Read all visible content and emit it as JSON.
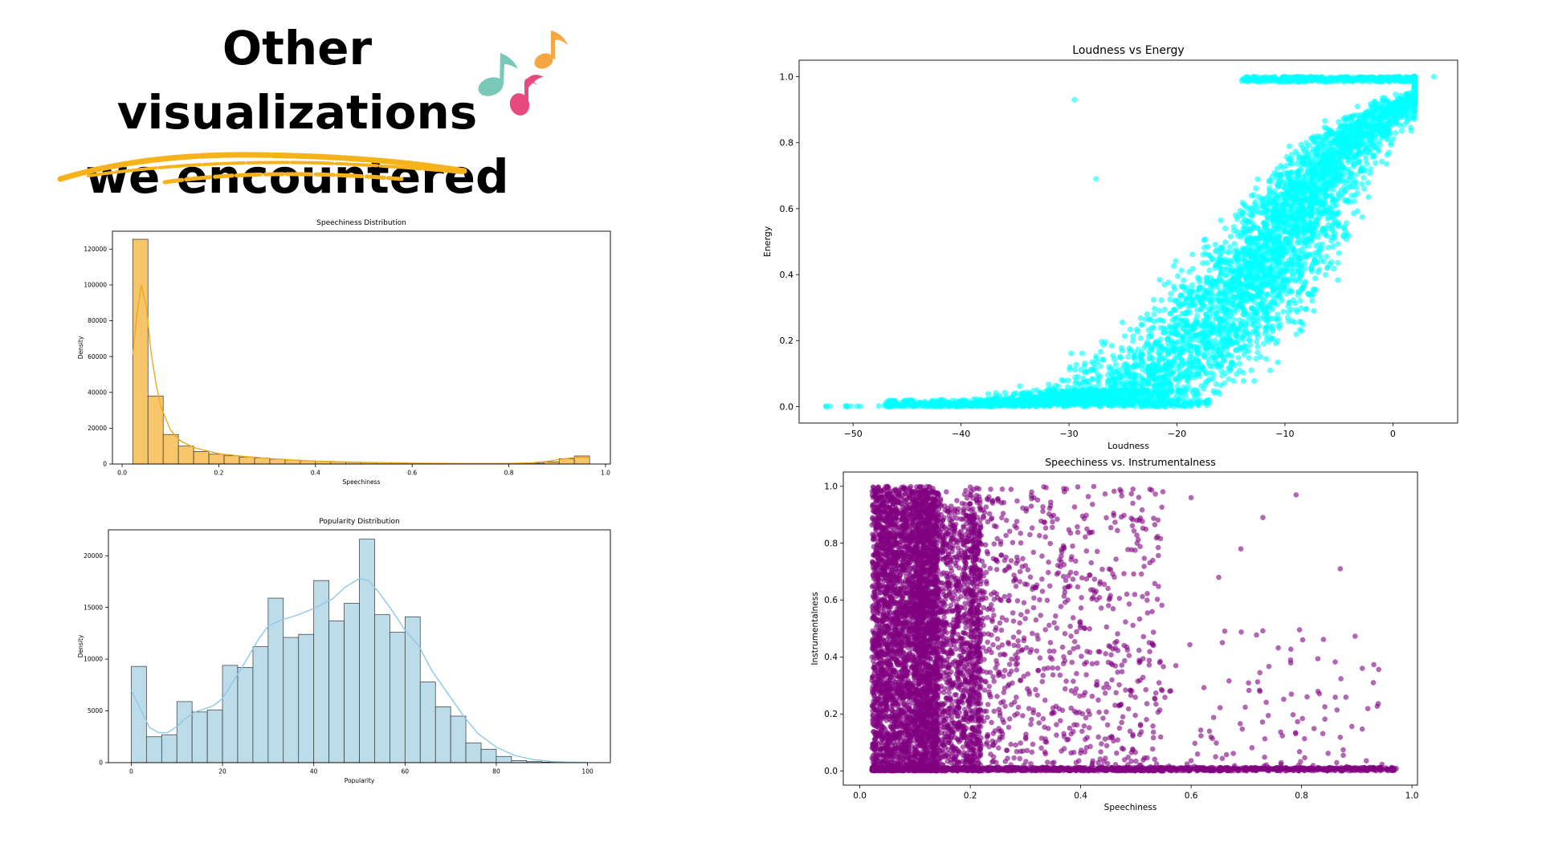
{
  "slide": {
    "title_line1": "Other visualizations",
    "title_line2": "we encountered",
    "colors": {
      "note_orange": "#f4a742",
      "note_teal": "#79c9b8",
      "note_pink": "#e8497f",
      "brush": "#f6b21b"
    }
  },
  "chart_data": [
    {
      "type": "bar",
      "subtype": "histogram with kde",
      "title": "Speechiness Distribution",
      "xlabel": "Speechiness",
      "ylabel": "Density",
      "xlim": [
        -0.02,
        1.01
      ],
      "ylim": [
        0,
        130000
      ],
      "xticks": [
        0.0,
        0.2,
        0.4,
        0.6,
        0.8,
        1.0
      ],
      "xtick_labels": [
        "0.0",
        "0.2",
        "0.4",
        "0.6",
        "0.8",
        "1.0"
      ],
      "yticks": [
        0,
        20000,
        40000,
        60000,
        80000,
        100000,
        120000
      ],
      "ytick_labels": [
        "0",
        "20000",
        "40000",
        "60000",
        "80000",
        "100000",
        "120000"
      ],
      "bin_edges": [
        0.022,
        0.0535,
        0.085,
        0.1165,
        0.148,
        0.1795,
        0.211,
        0.2425,
        0.274,
        0.3055,
        0.337,
        0.3685,
        0.4,
        0.4315,
        0.463,
        0.4945,
        0.526,
        0.5575,
        0.589,
        0.6205,
        0.652,
        0.6835,
        0.715,
        0.7465,
        0.778,
        0.8095,
        0.841,
        0.8725,
        0.904,
        0.9355,
        0.967
      ],
      "values": [
        125500,
        38000,
        16500,
        10000,
        7000,
        5500,
        4600,
        3900,
        3300,
        2700,
        2200,
        1800,
        1500,
        1200,
        1000,
        800,
        700,
        600,
        500,
        400,
        350,
        300,
        300,
        300,
        300,
        350,
        500,
        1200,
        3000,
        4500
      ],
      "kde_x": [
        0.022,
        0.03,
        0.04,
        0.05,
        0.06,
        0.07,
        0.08,
        0.1,
        0.12,
        0.15,
        0.2,
        0.25,
        0.3,
        0.35,
        0.4,
        0.5,
        0.6,
        0.7,
        0.8,
        0.85,
        0.88,
        0.91,
        0.94,
        0.967
      ],
      "kde_y": [
        61000,
        82000,
        100000,
        88000,
        62000,
        45000,
        32000,
        19000,
        13000,
        9000,
        5800,
        4300,
        3200,
        2300,
        1600,
        900,
        500,
        300,
        300,
        700,
        1500,
        2800,
        3800,
        3600
      ],
      "bar_color": "#f7c66b",
      "line_color": "#f0a81e",
      "grid": false
    },
    {
      "type": "bar",
      "subtype": "histogram with kde",
      "title": "Popularity Distribution",
      "xlabel": "Popularity",
      "ylabel": "Density",
      "xlim": [
        -5,
        105
      ],
      "ylim": [
        0,
        22500
      ],
      "xticks": [
        0,
        20,
        40,
        60,
        80,
        100
      ],
      "xtick_labels": [
        "0",
        "20",
        "40",
        "60",
        "80",
        "100"
      ],
      "yticks": [
        0,
        5000,
        10000,
        15000,
        20000
      ],
      "ytick_labels": [
        "0",
        "5000",
        "10000",
        "15000",
        "20000"
      ],
      "bin_edges": [
        0,
        3.33,
        6.67,
        10,
        13.33,
        16.67,
        20,
        23.33,
        26.67,
        30,
        33.33,
        36.67,
        40,
        43.33,
        46.67,
        50,
        53.33,
        56.67,
        60,
        63.33,
        66.67,
        70,
        73.33,
        76.67,
        80,
        83.33,
        86.67,
        90,
        93.33,
        96.67,
        100
      ],
      "values": [
        9300,
        2500,
        2700,
        5900,
        4900,
        5100,
        9400,
        9200,
        11200,
        15900,
        12100,
        12400,
        17600,
        13700,
        15400,
        21600,
        14300,
        12600,
        14100,
        7800,
        5400,
        4500,
        1900,
        1300,
        600,
        200,
        100,
        50,
        30,
        20
      ],
      "kde_x": [
        0,
        2,
        4,
        6,
        8,
        10,
        12,
        14,
        16,
        18,
        20,
        22,
        24,
        26,
        28,
        30,
        33,
        36,
        40,
        44,
        47,
        50,
        52,
        54,
        57,
        60,
        63,
        66,
        70,
        73,
        76,
        80,
        84,
        88,
        92,
        96,
        100
      ],
      "kde_y": [
        7000,
        5200,
        3400,
        2900,
        2900,
        3500,
        4300,
        4900,
        5200,
        5500,
        6200,
        7600,
        9000,
        10500,
        12000,
        13200,
        13800,
        14200,
        14900,
        15800,
        17000,
        17800,
        17600,
        16600,
        14800,
        12800,
        11300,
        8800,
        6300,
        4400,
        2800,
        1500,
        700,
        300,
        120,
        50,
        20
      ],
      "bar_color": "#bcdcea",
      "line_color": "#8ec8e8",
      "grid": false
    },
    {
      "type": "scatter",
      "title": "Loudness vs Energy",
      "xlabel": "Loudness",
      "ylabel": "Energy",
      "xlim": [
        -55,
        6
      ],
      "ylim": [
        -0.05,
        1.05
      ],
      "xticks": [
        -50,
        -40,
        -30,
        -20,
        -10,
        0
      ],
      "xtick_labels": [
        "−50",
        "−40",
        "−30",
        "−20",
        "−10",
        "0"
      ],
      "yticks": [
        0.0,
        0.2,
        0.4,
        0.6,
        0.8,
        1.0
      ],
      "ytick_labels": [
        "0.0",
        "0.2",
        "0.4",
        "0.6",
        "0.8",
        "1.0"
      ],
      "color": "#00ffff",
      "alpha": 0.6,
      "x_range": [
        -52.5,
        3.8
      ],
      "y_range": [
        0.0,
        1.0
      ],
      "relationship": "sigmoid: energy rises from ~0 near loudness -45 to ~1 near loudness 0",
      "outliers": [
        {
          "x": -52.5,
          "y": 0.0
        },
        {
          "x": -29.5,
          "y": 0.93
        },
        {
          "x": 3.8,
          "y": 1.0
        },
        {
          "x": -27.5,
          "y": 0.69
        }
      ],
      "grid": false
    },
    {
      "type": "scatter",
      "title": "Speechiness vs. Instrumentalness",
      "xlabel": "Speechiness",
      "ylabel": "Instrumentalness",
      "xlim": [
        -0.03,
        1.01
      ],
      "ylim": [
        -0.05,
        1.05
      ],
      "xticks": [
        0.0,
        0.2,
        0.4,
        0.6,
        0.8,
        1.0
      ],
      "xtick_labels": [
        "0.0",
        "0.2",
        "0.4",
        "0.6",
        "0.8",
        "1.0"
      ],
      "yticks": [
        0.0,
        0.2,
        0.4,
        0.6,
        0.8,
        1.0
      ],
      "ytick_labels": [
        "0.0",
        "0.2",
        "0.4",
        "0.6",
        "0.8",
        "1.0"
      ],
      "color": "#800080",
      "alpha": 0.6,
      "x_range": [
        0.022,
        0.97
      ],
      "y_range": [
        0.0,
        1.0
      ],
      "relationship": "dense at low speechiness (<0.15) across all instrumentalness; sparse at higher speechiness; dense band along instrumentalness 0",
      "outliers": [
        {
          "x": 0.79,
          "y": 0.97
        },
        {
          "x": 0.73,
          "y": 0.89
        },
        {
          "x": 0.87,
          "y": 0.71
        },
        {
          "x": 0.78,
          "y": 0.39
        },
        {
          "x": 0.91,
          "y": 0.36
        },
        {
          "x": 0.93,
          "y": 0.31
        },
        {
          "x": 0.81,
          "y": 0.26
        },
        {
          "x": 0.6,
          "y": 0.96
        },
        {
          "x": 0.69,
          "y": 0.78
        },
        {
          "x": 0.65,
          "y": 0.68
        }
      ],
      "grid": false
    }
  ]
}
